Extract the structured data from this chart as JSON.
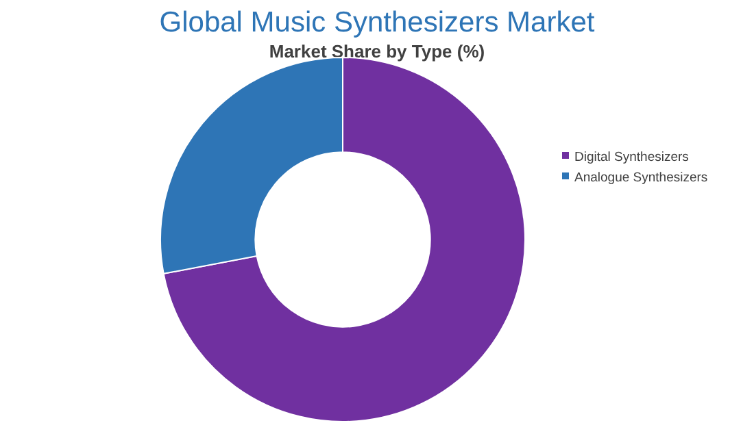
{
  "chart_data": {
    "type": "donut",
    "title": "Global Music Synthesizers Market",
    "subtitle": "Market Share by Type (%)",
    "categories": [
      "Digital Synthesizers",
      "Analogue Synthesizers"
    ],
    "values": [
      72,
      28
    ],
    "colors": [
      "#7030a0",
      "#2e75b6"
    ],
    "legend": "right"
  }
}
